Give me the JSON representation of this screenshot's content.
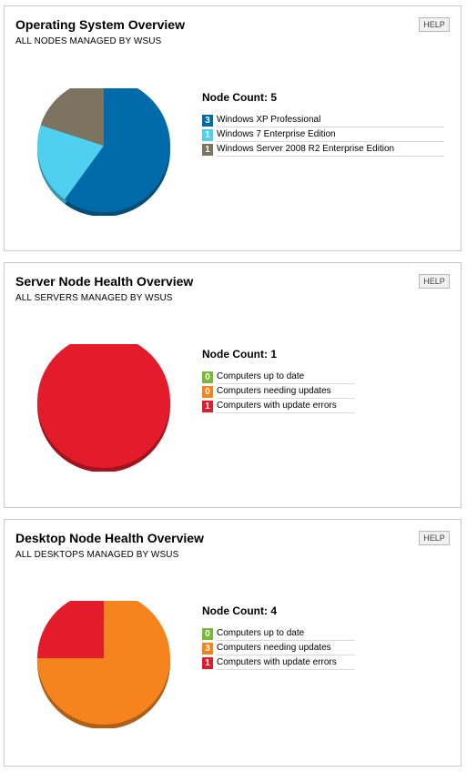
{
  "help_label": "HELP",
  "panels": [
    {
      "title": "Operating System Overview",
      "subtitle": "ALL NODES MANAGED BY WSUS",
      "node_count_label": "Node Count: 5",
      "legend": [
        {
          "count": "3",
          "label": "Windows XP Professional",
          "color": "#006ba8"
        },
        {
          "count": "1",
          "label": "Windows 7 Enterprise Edition",
          "color": "#4fd0f0"
        },
        {
          "count": "1",
          "label": "Windows Server 2008 R2 Enterprise Edition",
          "color": "#7d7361"
        }
      ]
    },
    {
      "title": "Server Node Health Overview",
      "subtitle": "ALL SERVERS MANAGED BY WSUS",
      "node_count_label": "Node Count: 1",
      "legend": [
        {
          "count": "0",
          "label": "Computers up to date",
          "color": "#78b936"
        },
        {
          "count": "0",
          "label": "Computers needing updates",
          "color": "#f5841f"
        },
        {
          "count": "1",
          "label": "Computers with update errors",
          "color": "#e31b2b"
        }
      ]
    },
    {
      "title": "Desktop Node Health Overview",
      "subtitle": "ALL DESKTOPS MANAGED BY WSUS",
      "node_count_label": "Node Count: 4",
      "legend": [
        {
          "count": "0",
          "label": "Computers up to date",
          "color": "#78b936"
        },
        {
          "count": "3",
          "label": "Computers needing updates",
          "color": "#f5841f"
        },
        {
          "count": "1",
          "label": "Computers with update errors",
          "color": "#e31b2b"
        }
      ]
    }
  ],
  "chart_data": [
    {
      "type": "pie",
      "title": "Operating System Overview",
      "categories": [
        "Windows XP Professional",
        "Windows 7 Enterprise Edition",
        "Windows Server 2008 R2 Enterprise Edition"
      ],
      "values": [
        3,
        1,
        1
      ],
      "colors": [
        "#006ba8",
        "#4fd0f0",
        "#7d7361"
      ]
    },
    {
      "type": "pie",
      "title": "Server Node Health Overview",
      "categories": [
        "Computers up to date",
        "Computers needing updates",
        "Computers with update errors"
      ],
      "values": [
        0,
        0,
        1
      ],
      "colors": [
        "#78b936",
        "#f5841f",
        "#e31b2b"
      ]
    },
    {
      "type": "pie",
      "title": "Desktop Node Health Overview",
      "categories": [
        "Computers up to date",
        "Computers needing updates",
        "Computers with update errors"
      ],
      "values": [
        0,
        3,
        1
      ],
      "colors": [
        "#78b936",
        "#f5841f",
        "#e31b2b"
      ]
    }
  ]
}
